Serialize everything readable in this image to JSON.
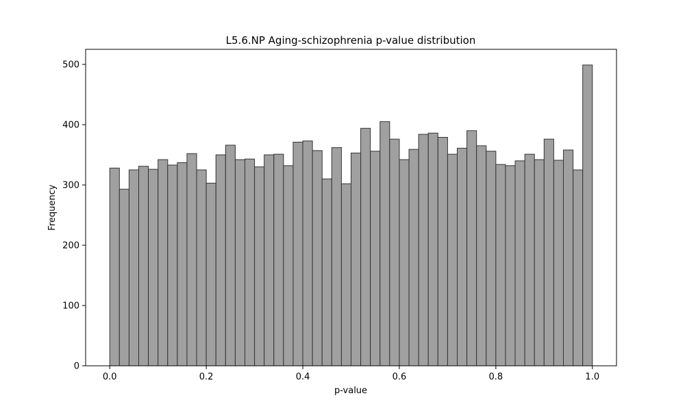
{
  "chart_data": {
    "type": "bar",
    "title": "L5.6.NP Aging-schizophrenia p-value distribution",
    "xlabel": "p-value",
    "ylabel": "Frequency",
    "xlim": [
      -0.05,
      1.05
    ],
    "ylim": [
      0,
      525
    ],
    "x_ticks": [
      0.0,
      0.2,
      0.4,
      0.6,
      0.8,
      1.0
    ],
    "x_tick_labels": [
      "0.0",
      "0.2",
      "0.4",
      "0.6",
      "0.8",
      "1.0"
    ],
    "y_ticks": [
      0,
      100,
      200,
      300,
      400,
      500
    ],
    "y_tick_labels": [
      "0",
      "100",
      "200",
      "300",
      "400",
      "500"
    ],
    "grid": false,
    "bin_start": 0.0,
    "bin_width": 0.02,
    "values": [
      328,
      293,
      325,
      331,
      326,
      342,
      333,
      337,
      352,
      325,
      303,
      350,
      366,
      342,
      343,
      330,
      350,
      351,
      332,
      371,
      373,
      357,
      310,
      362,
      302,
      353,
      394,
      356,
      405,
      376,
      342,
      359,
      384,
      386,
      379,
      351,
      361,
      390,
      365,
      356,
      334,
      332,
      340,
      351,
      342,
      376,
      341,
      358,
      325,
      499
    ],
    "colors": {
      "bar_fill": "#a0a0a0",
      "bar_edge": "#333333",
      "axis": "#000000"
    }
  }
}
